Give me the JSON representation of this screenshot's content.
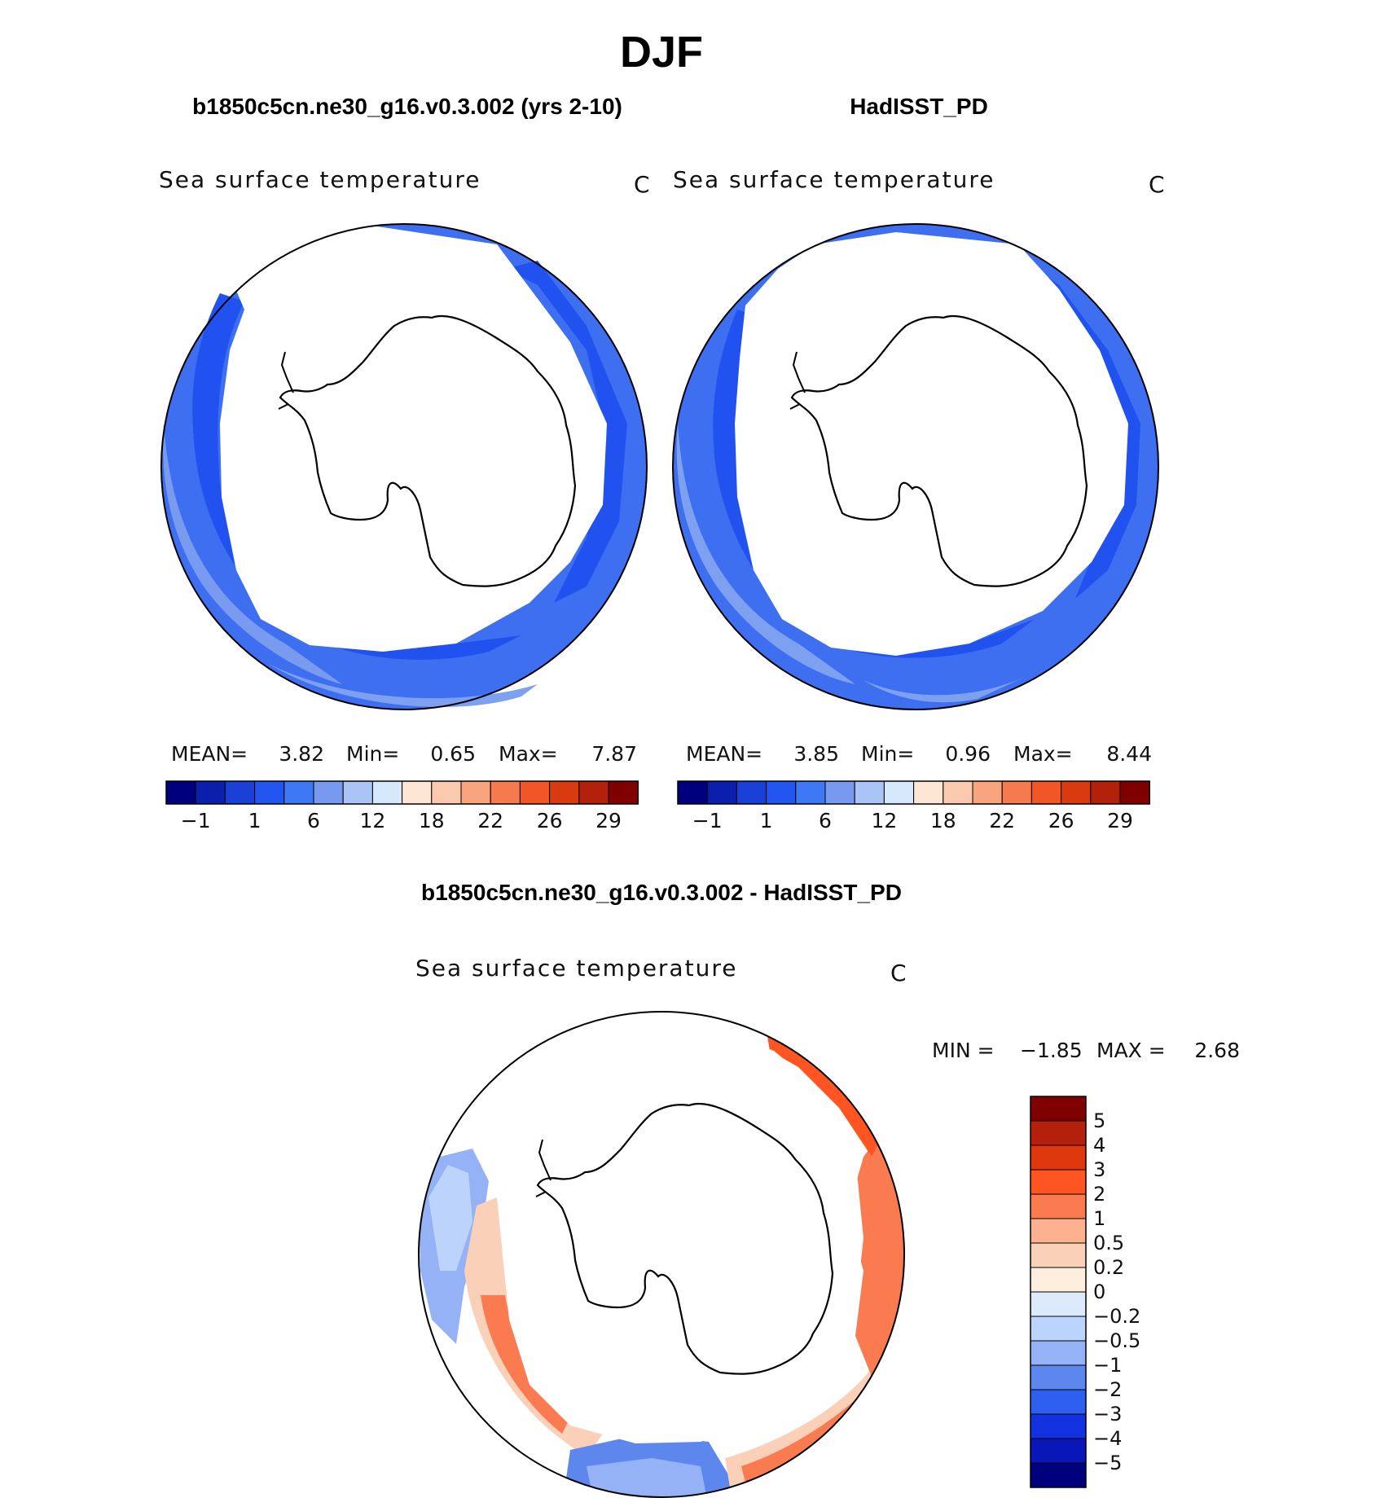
{
  "season_title": "DJF",
  "panels": [
    {
      "case_title": "b1850c5cn.ne30_g16.v0.3.002 (yrs 2-10)",
      "field_label": "Sea surface temperature",
      "units": "C",
      "stats": {
        "mean_label": "MEAN=",
        "mean": "3.82",
        "min_label": "Min=",
        "min": "0.65",
        "max_label": "Max=",
        "max": "7.87"
      }
    },
    {
      "case_title": "HadISST_PD",
      "field_label": "Sea surface temperature",
      "units": "C",
      "stats": {
        "mean_label": "MEAN=",
        "mean": "3.85",
        "min_label": "Min=",
        "min": "0.96",
        "max_label": "Max=",
        "max": "8.44"
      }
    }
  ],
  "diff_panel": {
    "case_title": "b1850c5cn.ne30_g16.v0.3.002 - HadISST_PD",
    "field_label": "Sea surface temperature",
    "units": "C",
    "stats": {
      "min_label": "MIN =",
      "min": "−1.85",
      "max_label": "MAX =",
      "max": "2.68"
    }
  },
  "sst_colorbar": {
    "colors": [
      "#00007f",
      "#0a20ad",
      "#1a3fd6",
      "#2255f0",
      "#3f78f5",
      "#7799f0",
      "#aac4f7",
      "#d6e8fb",
      "#fde6d3",
      "#fbc9ae",
      "#f8a47e",
      "#f57a4e",
      "#f25526",
      "#d93a10",
      "#b3200b",
      "#800000"
    ],
    "tick_labels": [
      "−1",
      "1",
      "6",
      "12",
      "18",
      "22",
      "26",
      "29"
    ]
  },
  "diff_colorbar": {
    "colors_top_to_bottom": [
      "#800000",
      "#b3200b",
      "#e0380e",
      "#ff5522",
      "#f97b4f",
      "#fdb18f",
      "#fbd0b9",
      "#fdeede",
      "#dcebfb",
      "#bcd4fb",
      "#94b2f5",
      "#5e87ee",
      "#2f5ff0",
      "#1232e0",
      "#0a17b8",
      "#00007f"
    ],
    "tick_labels": [
      "5",
      "4",
      "3",
      "2",
      "1",
      "0.5",
      "0.2",
      "0",
      "−0.2",
      "−0.5",
      "−1",
      "−2",
      "−3",
      "−4",
      "−5"
    ]
  }
}
